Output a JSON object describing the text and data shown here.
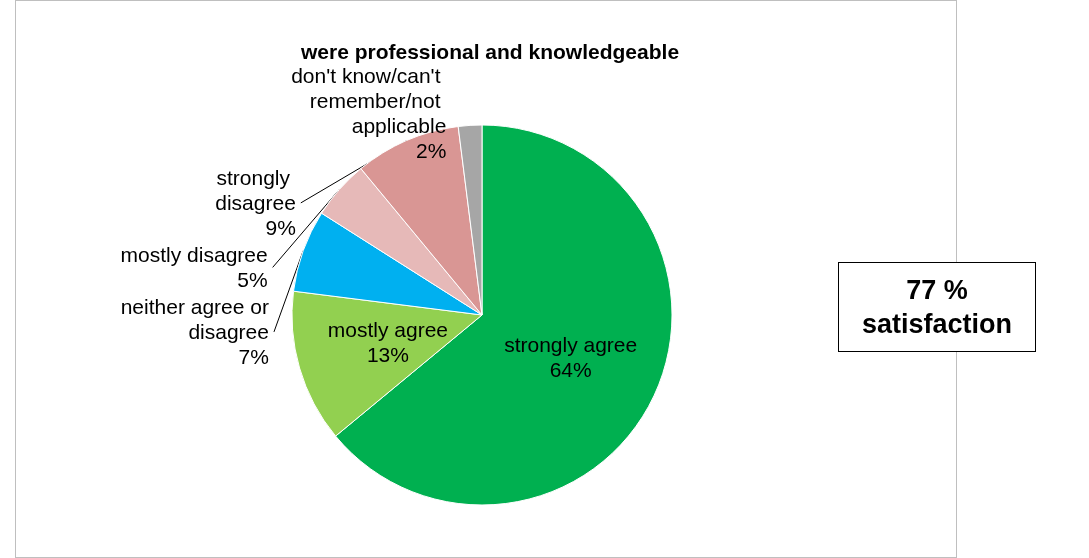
{
  "chart_data": {
    "type": "pie",
    "title": "were professional and knowledgeable",
    "categories": [
      "strongly agree",
      "mostly agree",
      "neither agree or disagree",
      "mostly disagree",
      "strongly disagree",
      "don't know/can't remember/not applicable"
    ],
    "values": [
      64,
      13,
      7,
      5,
      9,
      2
    ],
    "value_labels": [
      "64%",
      "13%",
      "7%",
      "5%",
      "9%",
      "2%"
    ],
    "colors": [
      "#00b050",
      "#92d050",
      "#00b0f0",
      "#e6b9b8",
      "#d99694",
      "#a6a6a6"
    ],
    "annotations": [
      "77 % satisfaction"
    ],
    "legend": false
  }
}
